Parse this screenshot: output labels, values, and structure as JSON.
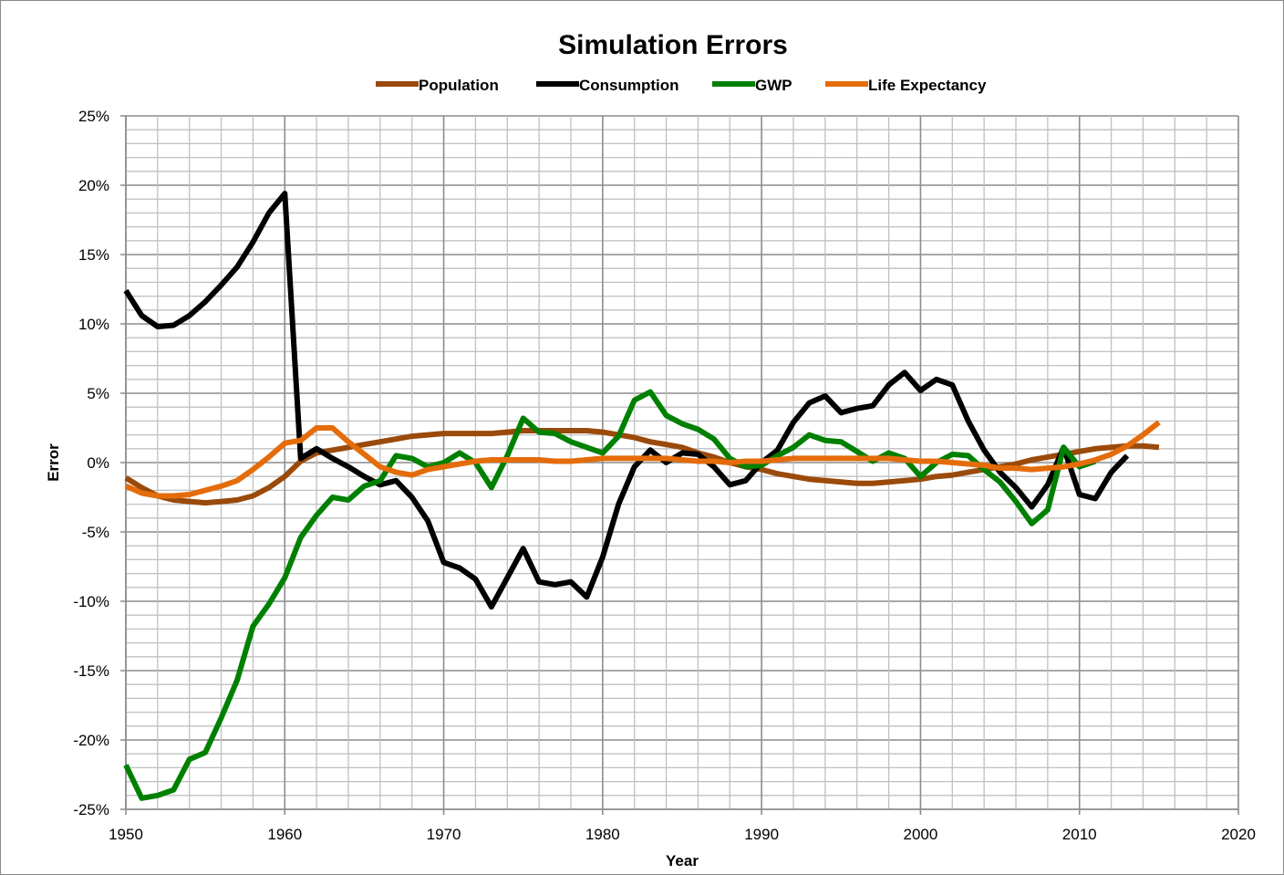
{
  "chart_data": {
    "type": "line",
    "title": "Simulation Errors",
    "xlabel": "Year",
    "ylabel": "Error",
    "xlim": [
      1950,
      2020
    ],
    "ylim": [
      -25,
      25
    ],
    "x_major_step": 10,
    "x_minor_step": 2,
    "y_major_step": 5,
    "y_minor_step": 1,
    "grid": true,
    "legend_position": "top",
    "x_tick_labels": [
      "1950",
      "1960",
      "1970",
      "1980",
      "1990",
      "2000",
      "2010",
      "2020"
    ],
    "y_tick_labels": [
      "25%",
      "20%",
      "15%",
      "10%",
      "5%",
      "0%",
      "-5%",
      "-10%",
      "-15%",
      "-20%",
      "-25%"
    ],
    "series": [
      {
        "name": "Population",
        "color": "#9a4a0a",
        "start": 1950,
        "values": [
          -1.1,
          -1.8,
          -2.4,
          -2.7,
          -2.8,
          -2.9,
          -2.8,
          -2.7,
          -2.4,
          -1.8,
          -1.0,
          0.1,
          0.7,
          0.9,
          1.1,
          1.3,
          1.5,
          1.7,
          1.9,
          2.0,
          2.1,
          2.1,
          2.1,
          2.1,
          2.2,
          2.3,
          2.3,
          2.3,
          2.3,
          2.3,
          2.2,
          2.0,
          1.8,
          1.5,
          1.3,
          1.1,
          0.7,
          0.4,
          0.0,
          -0.3,
          -0.5,
          -0.8,
          -1.0,
          -1.2,
          -1.3,
          -1.4,
          -1.5,
          -1.5,
          -1.4,
          -1.3,
          -1.2,
          -1.0,
          -0.9,
          -0.7,
          -0.5,
          -0.3,
          -0.1,
          0.2,
          0.4,
          0.6,
          0.8,
          1.0,
          1.1,
          1.2,
          1.2,
          1.1
        ]
      },
      {
        "name": "Consumption",
        "color": "#000000",
        "start": 1950,
        "values": [
          12.4,
          10.6,
          9.8,
          9.9,
          10.6,
          11.6,
          12.8,
          14.1,
          15.9,
          18.0,
          19.4,
          0.3,
          1.0,
          0.3,
          -0.3,
          -1.0,
          -1.6,
          -1.3,
          -2.5,
          -4.2,
          -7.2,
          -7.6,
          -8.4,
          -10.4,
          -8.3,
          -6.2,
          -8.6,
          -8.8,
          -8.6,
          -9.7,
          -6.8,
          -3.0,
          -0.3,
          0.9,
          0.0,
          0.7,
          0.6,
          -0.3,
          -1.6,
          -1.3,
          0.0,
          0.9,
          2.9,
          4.3,
          4.8,
          3.6,
          3.9,
          4.1,
          5.6,
          6.5,
          5.2,
          6.0,
          5.6,
          3.0,
          0.9,
          -0.7,
          -1.8,
          -3.2,
          -1.6,
          1.1,
          -2.3,
          -2.6,
          -0.7,
          0.5
        ]
      },
      {
        "name": "GWP",
        "color": "#008000",
        "start": 1950,
        "values": [
          -21.8,
          -24.2,
          -24.0,
          -23.6,
          -21.4,
          -20.9,
          -18.4,
          -15.7,
          -11.8,
          -10.2,
          -8.3,
          -5.4,
          -3.8,
          -2.5,
          -2.7,
          -1.7,
          -1.3,
          0.5,
          0.3,
          -0.3,
          0.0,
          0.7,
          0.0,
          -1.8,
          0.5,
          3.2,
          2.2,
          2.1,
          1.5,
          1.1,
          0.7,
          1.9,
          4.5,
          5.1,
          3.4,
          2.8,
          2.4,
          1.7,
          0.3,
          -0.3,
          -0.2,
          0.5,
          1.1,
          2.0,
          1.6,
          1.5,
          0.8,
          0.1,
          0.7,
          0.3,
          -1.0,
          0.0,
          0.6,
          0.5,
          -0.5,
          -1.4,
          -2.8,
          -4.4,
          -3.4,
          1.1,
          -0.3,
          0.1
        ]
      },
      {
        "name": "Life Expectancy",
        "color": "#e46c0a",
        "start": 1950,
        "values": [
          -1.7,
          -2.2,
          -2.4,
          -2.4,
          -2.3,
          -2.0,
          -1.7,
          -1.3,
          -0.5,
          0.4,
          1.4,
          1.6,
          2.5,
          2.5,
          1.5,
          0.6,
          -0.3,
          -0.7,
          -0.9,
          -0.5,
          -0.3,
          -0.1,
          0.1,
          0.2,
          0.2,
          0.2,
          0.2,
          0.1,
          0.1,
          0.2,
          0.3,
          0.3,
          0.3,
          0.3,
          0.3,
          0.2,
          0.1,
          0.1,
          0.0,
          0.1,
          0.1,
          0.2,
          0.3,
          0.3,
          0.3,
          0.3,
          0.3,
          0.3,
          0.3,
          0.2,
          0.1,
          0.1,
          0.0,
          -0.1,
          -0.2,
          -0.4,
          -0.4,
          -0.5,
          -0.4,
          -0.3,
          -0.1,
          0.2,
          0.6,
          1.2,
          2.0,
          2.9
        ]
      }
    ]
  }
}
